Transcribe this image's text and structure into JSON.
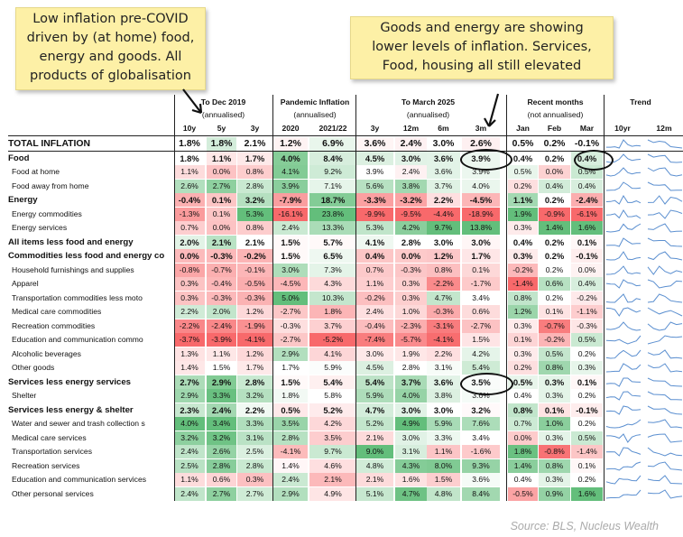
{
  "notes": {
    "left": "Low inflation pre-COVID\ndriven by (at home) food,\nenergy and goods. All\nproducts of globalisation",
    "right": "Goods and energy are showing\nlower levels of inflation. Services,\nFood, housing all still elevated"
  },
  "source": "Source: BLS, Nucleus Wealth",
  "colors": {
    "red": "#f8696b",
    "green": "#63be7b",
    "white": "#ffffff",
    "spark": "#5b8fd0"
  },
  "chart_data": {
    "type": "table",
    "groups": [
      {
        "title": "To Dec 2019",
        "subtitle": "(annualised)"
      },
      {
        "title": "Pandemic Inflation",
        "subtitle": "(annualised)"
      },
      {
        "title": "To March 2025",
        "subtitle": "(annualised)"
      },
      {
        "title": "Recent months",
        "subtitle": "(not annualised)"
      },
      {
        "title": "Trend",
        "subtitle": ""
      }
    ],
    "columns": [
      "10y",
      "5y",
      "3y",
      "2020",
      "2021/22",
      "3y",
      "12m",
      "6m",
      "3m",
      "Jan",
      "Feb",
      "Mar"
    ],
    "trend_columns": [
      "10yr",
      "12m"
    ],
    "rows": [
      {
        "label": "TOTAL INFLATION",
        "level": "total",
        "values": [
          "1.8%",
          "1.8%",
          "2.1%",
          "1.2%",
          "6.9%",
          "3.6%",
          "2.4%",
          "3.0%",
          "2.6%",
          "0.5%",
          "0.2%",
          "-0.1%"
        ]
      },
      {
        "label": "Food",
        "level": "bold",
        "values": [
          "1.8%",
          "1.1%",
          "1.7%",
          "4.0%",
          "8.4%",
          "4.5%",
          "3.0%",
          "3.6%",
          "3.9%",
          "0.4%",
          "0.2%",
          "0.4%"
        ]
      },
      {
        "label": "Food at home",
        "level": "sub",
        "values": [
          "1.1%",
          "0.0%",
          "0.8%",
          "4.1%",
          "9.2%",
          "3.9%",
          "2.4%",
          "3.6%",
          "3.9%",
          "0.5%",
          "0.0%",
          "0.5%"
        ]
      },
      {
        "label": "Food away from home",
        "level": "sub",
        "values": [
          "2.6%",
          "2.7%",
          "2.8%",
          "3.9%",
          "7.1%",
          "5.6%",
          "3.8%",
          "3.7%",
          "4.0%",
          "0.2%",
          "0.4%",
          "0.4%"
        ]
      },
      {
        "label": "Energy",
        "level": "bold",
        "values": [
          "-0.4%",
          "0.1%",
          "3.2%",
          "-7.9%",
          "18.7%",
          "-3.3%",
          "-3.2%",
          "2.2%",
          "-4.5%",
          "1.1%",
          "0.2%",
          "-2.4%"
        ]
      },
      {
        "label": "Energy commodities",
        "level": "sub",
        "values": [
          "-1.3%",
          "0.1%",
          "5.3%",
          "-16.1%",
          "23.8%",
          "-9.9%",
          "-9.5%",
          "-4.4%",
          "-18.9%",
          "1.9%",
          "-0.9%",
          "-6.1%"
        ]
      },
      {
        "label": "Energy services",
        "level": "sub",
        "values": [
          "0.7%",
          "0.0%",
          "0.8%",
          "2.4%",
          "13.3%",
          "5.3%",
          "4.2%",
          "9.7%",
          "13.8%",
          "0.3%",
          "1.4%",
          "1.6%"
        ]
      },
      {
        "label": "All items less food and energy",
        "level": "bold",
        "values": [
          "2.0%",
          "2.1%",
          "2.1%",
          "1.5%",
          "5.7%",
          "4.1%",
          "2.8%",
          "3.0%",
          "3.0%",
          "0.4%",
          "0.2%",
          "0.1%"
        ]
      },
      {
        "label": "Commodities less food and energy co",
        "level": "bold",
        "values": [
          "0.0%",
          "-0.3%",
          "-0.2%",
          "1.5%",
          "6.5%",
          "0.4%",
          "0.0%",
          "1.2%",
          "1.7%",
          "0.3%",
          "0.2%",
          "-0.1%"
        ]
      },
      {
        "label": "Household furnishings and supplies",
        "level": "sub",
        "values": [
          "-0.8%",
          "-0.7%",
          "-0.1%",
          "3.0%",
          "7.3%",
          "0.7%",
          "-0.3%",
          "0.8%",
          "0.1%",
          "-0.2%",
          "0.2%",
          "0.0%"
        ]
      },
      {
        "label": "Apparel",
        "level": "sub",
        "values": [
          "0.3%",
          "-0.4%",
          "-0.5%",
          "-4.5%",
          "4.3%",
          "1.1%",
          "0.3%",
          "-2.2%",
          "-1.7%",
          "-1.4%",
          "0.6%",
          "0.4%"
        ]
      },
      {
        "label": "Transportation commodities less moto",
        "level": "sub",
        "values": [
          "0.3%",
          "-0.3%",
          "-0.3%",
          "5.0%",
          "10.3%",
          "-0.2%",
          "0.3%",
          "4.7%",
          "3.4%",
          "0.8%",
          "0.2%",
          "-0.2%"
        ]
      },
      {
        "label": "Medical care commodities",
        "level": "sub",
        "values": [
          "2.2%",
          "2.0%",
          "1.2%",
          "-2.7%",
          "1.8%",
          "2.4%",
          "1.0%",
          "-0.3%",
          "0.6%",
          "1.2%",
          "0.1%",
          "-1.1%"
        ]
      },
      {
        "label": "Recreation commodities",
        "level": "sub",
        "values": [
          "-2.2%",
          "-2.4%",
          "-1.9%",
          "-0.3%",
          "3.7%",
          "-0.4%",
          "-2.3%",
          "-3.1%",
          "-2.7%",
          "0.3%",
          "-0.7%",
          "-0.3%"
        ]
      },
      {
        "label": "Education and communication commo",
        "level": "sub",
        "values": [
          "-3.7%",
          "-3.9%",
          "-4.1%",
          "-2.7%",
          "-5.2%",
          "-7.4%",
          "-5.7%",
          "-4.1%",
          "1.5%",
          "0.1%",
          "-0.2%",
          "0.5%"
        ]
      },
      {
        "label": "Alcoholic beverages",
        "level": "sub",
        "values": [
          "1.3%",
          "1.1%",
          "1.2%",
          "2.9%",
          "4.1%",
          "3.0%",
          "1.9%",
          "2.2%",
          "4.2%",
          "0.3%",
          "0.5%",
          "0.2%"
        ]
      },
      {
        "label": "Other goods",
        "level": "sub",
        "values": [
          "1.4%",
          "1.5%",
          "1.7%",
          "1.7%",
          "5.9%",
          "4.5%",
          "2.8%",
          "3.1%",
          "5.4%",
          "0.2%",
          "0.8%",
          "0.3%"
        ]
      },
      {
        "label": "Services less energy services",
        "level": "bold",
        "values": [
          "2.7%",
          "2.9%",
          "2.8%",
          "1.5%",
          "5.4%",
          "5.4%",
          "3.7%",
          "3.6%",
          "3.5%",
          "0.5%",
          "0.3%",
          "0.1%"
        ]
      },
      {
        "label": "Shelter",
        "level": "sub",
        "values": [
          "2.9%",
          "3.3%",
          "3.2%",
          "1.8%",
          "5.8%",
          "5.9%",
          "4.0%",
          "3.8%",
          "3.6%",
          "0.4%",
          "0.3%",
          "0.2%"
        ]
      },
      {
        "label": "Services less energy & shelter",
        "level": "bold",
        "values": [
          "2.3%",
          "2.4%",
          "2.2%",
          "0.5%",
          "5.2%",
          "4.7%",
          "3.0%",
          "3.0%",
          "3.2%",
          "0.8%",
          "0.1%",
          "-0.1%"
        ]
      },
      {
        "label": "Water and sewer and trash collection s",
        "level": "sub",
        "values": [
          "4.0%",
          "3.4%",
          "3.3%",
          "3.5%",
          "4.2%",
          "5.2%",
          "4.9%",
          "5.9%",
          "7.6%",
          "0.7%",
          "1.0%",
          "0.2%"
        ]
      },
      {
        "label": "Medical care services",
        "level": "sub",
        "values": [
          "3.2%",
          "3.2%",
          "3.1%",
          "2.8%",
          "3.5%",
          "2.1%",
          "3.0%",
          "3.3%",
          "3.4%",
          "0.0%",
          "0.3%",
          "0.5%"
        ]
      },
      {
        "label": "Transportation services",
        "level": "sub",
        "values": [
          "2.4%",
          "2.6%",
          "2.5%",
          "-4.1%",
          "9.7%",
          "9.0%",
          "3.1%",
          "1.1%",
          "-1.6%",
          "1.8%",
          "-0.8%",
          "-1.4%"
        ]
      },
      {
        "label": "Recreation services",
        "level": "sub",
        "values": [
          "2.5%",
          "2.8%",
          "2.8%",
          "1.4%",
          "4.6%",
          "4.8%",
          "4.3%",
          "8.0%",
          "9.3%",
          "1.4%",
          "0.8%",
          "0.1%"
        ]
      },
      {
        "label": "Education and communication services",
        "level": "sub",
        "values": [
          "1.1%",
          "0.6%",
          "0.3%",
          "2.4%",
          "2.1%",
          "2.1%",
          "1.6%",
          "1.5%",
          "3.6%",
          "0.4%",
          "0.3%",
          "0.2%"
        ]
      },
      {
        "label": "Other personal services",
        "level": "sub",
        "values": [
          "2.4%",
          "2.7%",
          "2.7%",
          "2.9%",
          "4.9%",
          "5.1%",
          "4.7%",
          "4.8%",
          "8.4%",
          "-0.5%",
          "0.9%",
          "1.6%"
        ]
      }
    ]
  }
}
